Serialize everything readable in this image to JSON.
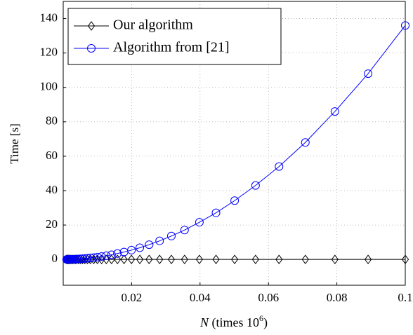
{
  "chart_data": {
    "type": "line",
    "ylabel": "Time [s]",
    "xlabel": [
      "N",
      " (times 10",
      "6",
      ")"
    ],
    "x": [
      0.001,
      0.001122,
      0.001259,
      0.001413,
      0.001585,
      0.001778,
      0.001995,
      0.002239,
      0.002512,
      0.002818,
      0.003162,
      0.003548,
      0.003981,
      0.004467,
      0.005012,
      0.005623,
      0.00631,
      0.007079,
      0.007943,
      0.008913,
      0.01,
      0.01122,
      0.01259,
      0.01413,
      0.01585,
      0.01778,
      0.01995,
      0.02239,
      0.02512,
      0.02818,
      0.03162,
      0.03548,
      0.03981,
      0.04467,
      0.05012,
      0.05623,
      0.0631,
      0.07079,
      0.07943,
      0.08913,
      0.1
    ],
    "series": [
      {
        "name": "Our algorithm",
        "color": "#000000",
        "marker": "diamond",
        "values": [
          0,
          0,
          0,
          0,
          0,
          0,
          0,
          0,
          0,
          0,
          0,
          0,
          0,
          0,
          0,
          0,
          0,
          0,
          0,
          0,
          0,
          0,
          0,
          0,
          0,
          0,
          0,
          0,
          0,
          0,
          0,
          0,
          0,
          0,
          0,
          0,
          0,
          0,
          0,
          0,
          0
        ]
      },
      {
        "name": "Algorithm from [21]",
        "color": "#0000ff",
        "marker": "circle",
        "values": [
          0.0136,
          0.0171,
          0.0216,
          0.0271,
          0.0342,
          0.043,
          0.054,
          0.068,
          0.086,
          0.108,
          0.136,
          0.171,
          0.216,
          0.271,
          0.342,
          0.43,
          0.54,
          0.68,
          0.86,
          1.08,
          1.36,
          1.71,
          2.16,
          2.71,
          3.42,
          4.3,
          5.4,
          6.8,
          8.6,
          10.8,
          13.6,
          17.1,
          21.6,
          27.1,
          34.2,
          43,
          54,
          68,
          86,
          108,
          136
        ]
      }
    ],
    "xlim": [
      0,
      0.1
    ],
    "ylim": [
      -15,
      150
    ],
    "xticks": [
      0.02,
      0.04,
      0.06,
      0.08,
      0.1
    ],
    "yticks": [
      0,
      20,
      40,
      60,
      80,
      100,
      120,
      140
    ],
    "grid": true,
    "legend": "upper-left"
  }
}
